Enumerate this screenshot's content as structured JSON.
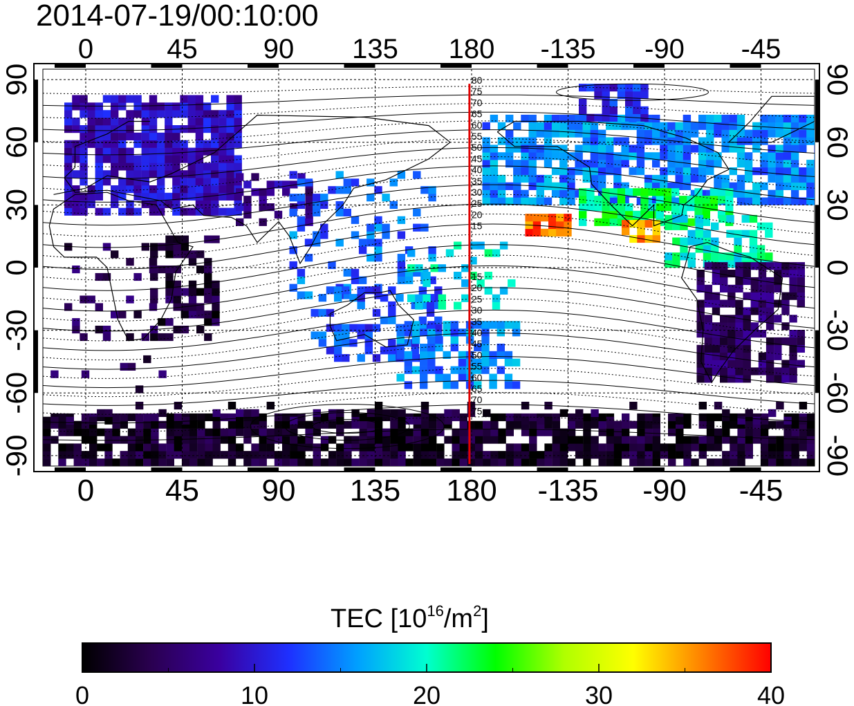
{
  "title": "2014-07-19/00:10:00",
  "map": {
    "lon_ticks": [
      "0",
      "45",
      "90",
      "135",
      "180",
      "-135",
      "-90",
      "-45"
    ],
    "lat_ticks": [
      "90",
      "60",
      "30",
      "0",
      "-30",
      "-60",
      "-90"
    ],
    "lon_range": [
      -20,
      340
    ],
    "lat_range": [
      -95,
      95
    ],
    "terminator_lon": 179,
    "contour_labels_north": [
      "80",
      "75",
      "70",
      "65",
      "60",
      "55",
      "50",
      "45",
      "40",
      "35",
      "30",
      "25",
      "20",
      "15"
    ],
    "contour_labels_south": [
      "15",
      "20",
      "25",
      "30",
      "35",
      "40",
      "45",
      "50",
      "55",
      "60",
      "65",
      "70",
      "75"
    ]
  },
  "colorbar": {
    "label": "TEC  [10",
    "label_sup": "16",
    "label_mid": "/m",
    "label_sup2": "2",
    "label_end": "]",
    "ticks": [
      "0",
      "10",
      "20",
      "30",
      "40"
    ],
    "range": [
      0,
      40
    ],
    "colors": [
      "#000000",
      "#2a0050",
      "#3a00a0",
      "#1e30ff",
      "#00a0ff",
      "#00ffd0",
      "#00ff00",
      "#b0ff00",
      "#ffff00",
      "#ff8000",
      "#ff0000"
    ]
  }
}
